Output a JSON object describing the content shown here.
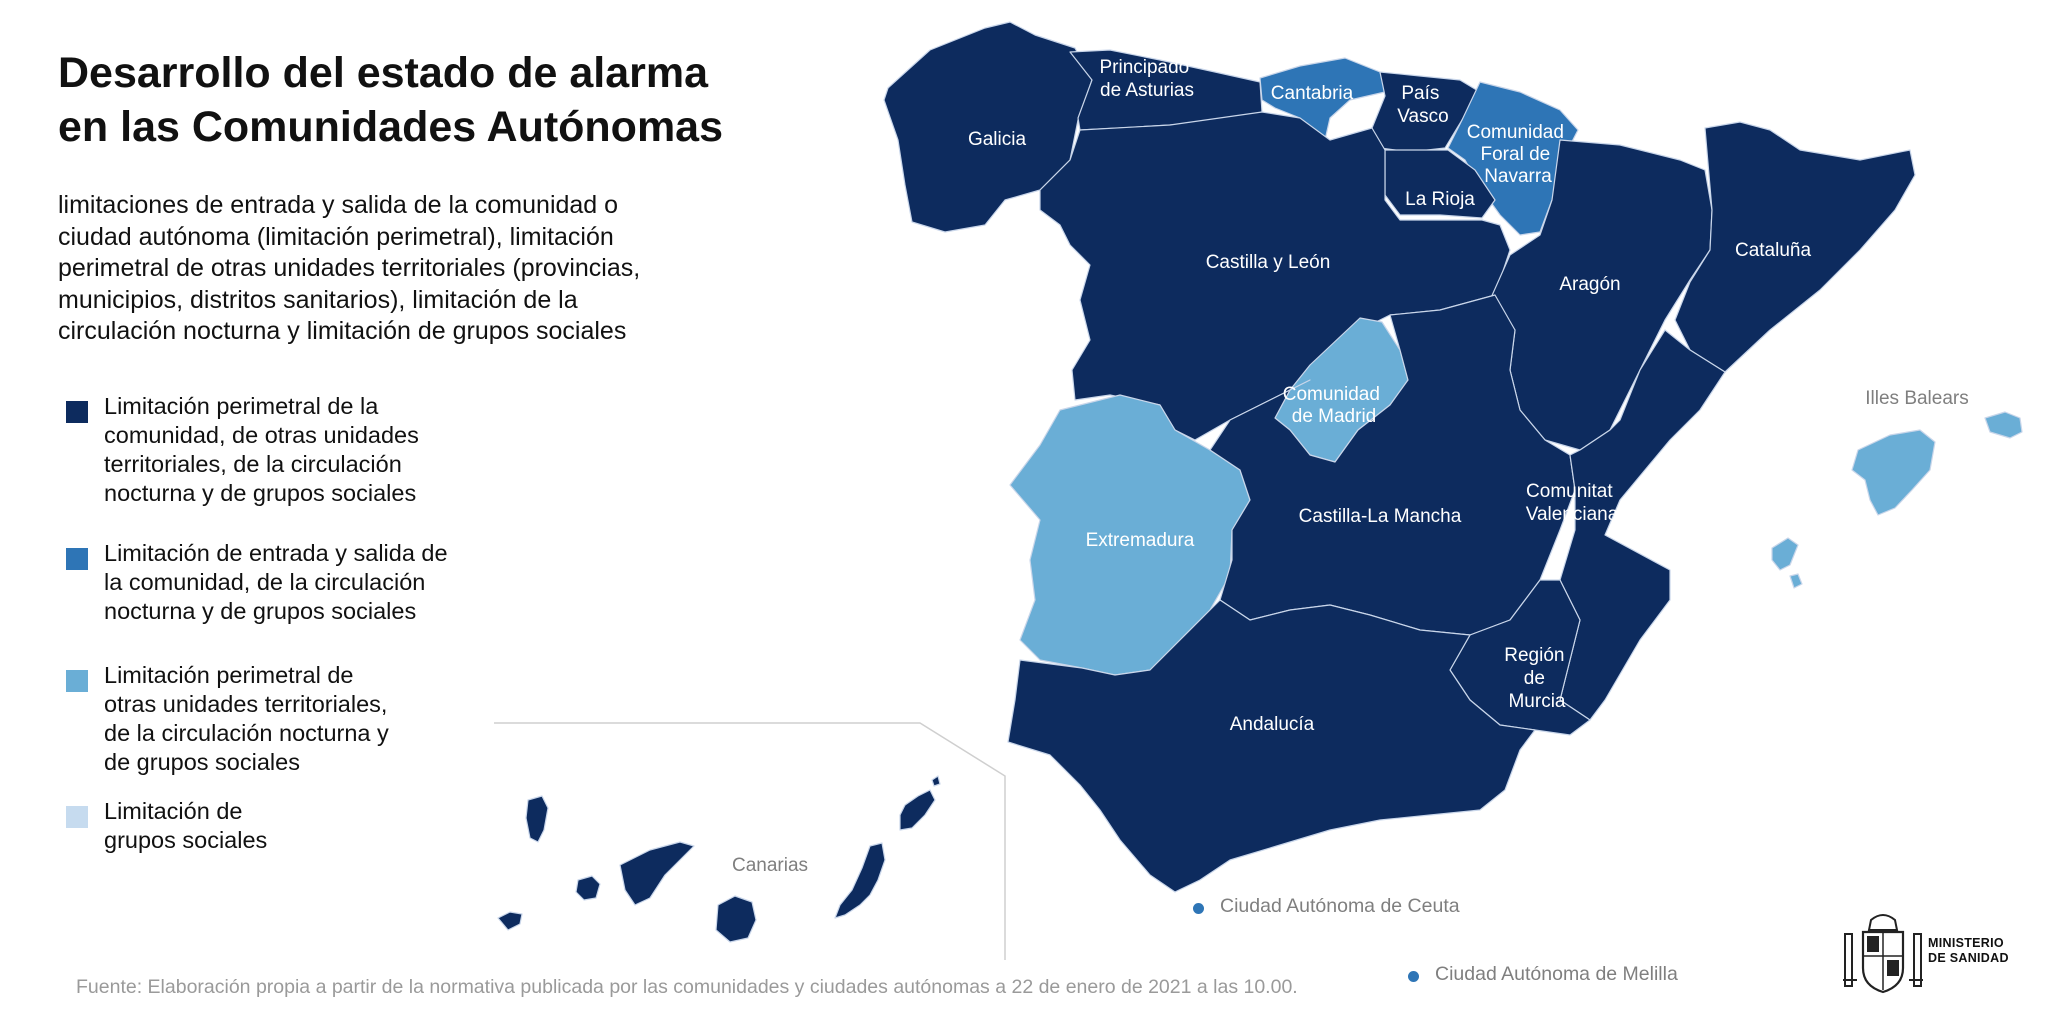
{
  "title": {
    "line1": "Desarrollo del estado de alarma",
    "line2": "en las Comunidades Autónomas"
  },
  "subtitle": {
    "lines": [
      "limitaciones de entrada y salida de la comunidad o",
      "ciudad autónoma (limitación perimetral), limitación",
      "perimetral de otras unidades territoriales (provincias,",
      "municipios, distritos sanitarios), limitación de la",
      "circulación nocturna y limitación de grupos sociales"
    ]
  },
  "legend": [
    {
      "color": "#0d2b5e",
      "lines": [
        "Limitación perimetral de la",
        "comunidad, de otras unidades",
        "territoriales, de la circulación",
        "nocturna y de grupos sociales"
      ]
    },
    {
      "color": "#2e75b6",
      "lines": [
        "Limitación de entrada y salida de",
        "la comunidad, de la circulación",
        "nocturna y de grupos sociales"
      ]
    },
    {
      "color": "#6aaed6",
      "lines": [
        "Limitación perimetral de",
        "otras unidades territoriales,",
        "de la circulación nocturna y",
        "de grupos sociales"
      ]
    },
    {
      "color": "#c6dbef",
      "lines": [
        "Limitación de",
        "grupos sociales"
      ]
    }
  ],
  "regions": {
    "galicia": {
      "label": "Galicia",
      "category": 1
    },
    "asturias": {
      "label_lines": [
        "Principado",
        "de Asturias"
      ],
      "category": 1
    },
    "cantabria": {
      "label": "Cantabria",
      "category": 2
    },
    "pais_vasco": {
      "label_lines": [
        "País",
        "Vasco"
      ],
      "category": 1
    },
    "navarra": {
      "label_lines": [
        "Comunidad",
        "Foral de",
        "Navarra"
      ],
      "category": 2
    },
    "la_rioja": {
      "label": "La Rioja",
      "category": 1
    },
    "castilla_leon": {
      "label": "Castilla y León",
      "category": 1
    },
    "aragon": {
      "label": "Aragón",
      "category": 1
    },
    "cataluna": {
      "label": "Cataluña",
      "category": 1
    },
    "madrid": {
      "label_lines": [
        "Comunidad",
        "de Madrid"
      ],
      "category": 3
    },
    "extremadura": {
      "label": "Extremadura",
      "category": 3
    },
    "castilla_la_mancha": {
      "label": "Castilla-La Mancha",
      "category": 1
    },
    "valenciana": {
      "label_lines": [
        "Comunitat",
        "Valenciana"
      ],
      "category": 1
    },
    "murcia": {
      "label_lines": [
        "Región",
        "de",
        "Murcia"
      ],
      "category": 1
    },
    "andalucia": {
      "label": "Andalucía",
      "category": 1
    },
    "baleares": {
      "label": "Illes Balears",
      "category": 3
    },
    "canarias": {
      "label": "Canarias",
      "category": 1
    }
  },
  "cities": {
    "ceuta": {
      "label": "Ciudad Autónoma de Ceuta",
      "category": 2
    },
    "melilla": {
      "label": "Ciudad Autónoma de Melilla",
      "category": 2
    }
  },
  "source": "Fuente: Elaboración propia a partir de la normativa publicada por las comunidades y ciudades autónomas a 22 de enero de 2021 a las 10.00.",
  "logo": {
    "line1": "MINISTERIO",
    "line2": "DE SANIDAD"
  }
}
